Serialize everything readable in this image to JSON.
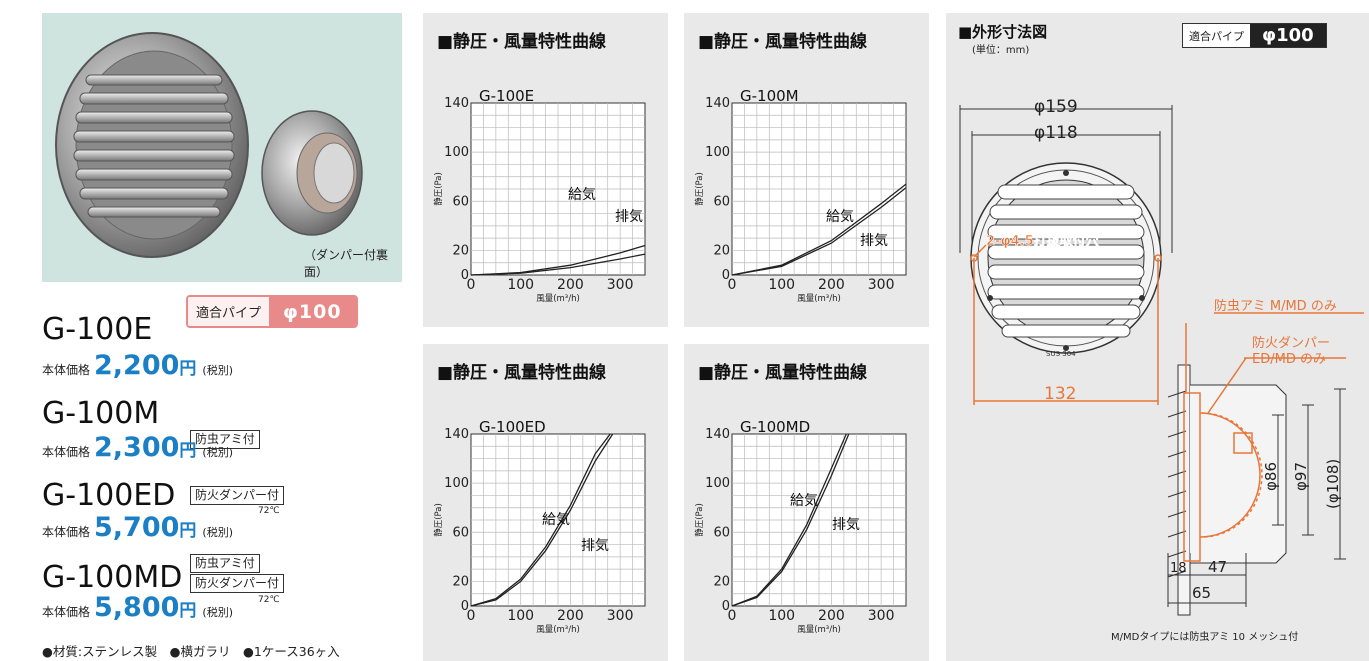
{
  "photo": {
    "caption": "（ダンパー付裏面）"
  },
  "pipe_badge": {
    "label": "適合パイプ",
    "value": "φ100"
  },
  "models": [
    {
      "name": "G-100E",
      "price_label": "本体価格",
      "price": "2,200",
      "unit": "円",
      "tax": "(税別)",
      "tags": [],
      "temp": ""
    },
    {
      "name": "G-100M",
      "price_label": "本体価格",
      "price": "2,300",
      "unit": "円",
      "tax": "(税別)",
      "tags": [
        "防虫アミ付"
      ],
      "temp": ""
    },
    {
      "name": "G-100ED",
      "price_label": "本体価格",
      "price": "5,700",
      "unit": "円",
      "tax": "(税別)",
      "tags": [
        "防火ダンパー付"
      ],
      "temp": "72℃"
    },
    {
      "name": "G-100MD",
      "price_label": "本体価格",
      "price": "5,800",
      "unit": "円",
      "tax": "(税別)",
      "tags": [
        "防虫アミ付",
        "防火ダンパー付"
      ],
      "temp": "72℃"
    }
  ],
  "footnote": "●材質:ステンレス製　●横ガラリ　●1ケース36ヶ入",
  "chart_data": [
    {
      "type": "line",
      "title": "■静圧・風量特性曲線",
      "subtitle": "G-100E",
      "xlabel": "風量(m³/h)",
      "ylabel": "静圧(Pa)",
      "xlim": [
        0,
        350
      ],
      "ylim": [
        0,
        140
      ],
      "xticks": [
        "0",
        "100",
        "200",
        "300"
      ],
      "yticks": [
        "0",
        "20",
        "60",
        "100",
        "140"
      ],
      "series": [
        {
          "name": "給気",
          "x": [
            0,
            100,
            200,
            300,
            350
          ],
          "y": [
            0,
            2,
            8,
            18,
            24
          ]
        },
        {
          "name": "排気",
          "x": [
            0,
            100,
            200,
            300,
            350
          ],
          "y": [
            0,
            1.5,
            6,
            13,
            17
          ]
        }
      ]
    },
    {
      "type": "line",
      "title": "■静圧・風量特性曲線",
      "subtitle": "G-100M",
      "xlabel": "風量(m³/h)",
      "ylabel": "静圧(Pa)",
      "xlim": [
        0,
        350
      ],
      "ylim": [
        0,
        140
      ],
      "xticks": [
        "0",
        "100",
        "200",
        "300"
      ],
      "yticks": [
        "0",
        "20",
        "60",
        "100",
        "140"
      ],
      "series": [
        {
          "name": "給気",
          "x": [
            0,
            100,
            200,
            300,
            350
          ],
          "y": [
            0,
            8,
            28,
            58,
            74
          ]
        },
        {
          "name": "排気",
          "x": [
            0,
            100,
            200,
            300,
            350
          ],
          "y": [
            0,
            7,
            26,
            55,
            71
          ]
        }
      ]
    },
    {
      "type": "line",
      "title": "■静圧・風量特性曲線",
      "subtitle": "G-100ED",
      "xlabel": "風量(m³/h)",
      "ylabel": "静圧(Pa)",
      "xlim": [
        0,
        350
      ],
      "ylim": [
        0,
        140
      ],
      "xticks": [
        "0",
        "100",
        "200",
        "300"
      ],
      "yticks": [
        "0",
        "20",
        "60",
        "100",
        "140"
      ],
      "series": [
        {
          "name": "給気",
          "x": [
            0,
            50,
            100,
            150,
            200,
            250,
            280
          ],
          "y": [
            0,
            6,
            22,
            48,
            82,
            124,
            140
          ]
        },
        {
          "name": "排気",
          "x": [
            0,
            50,
            100,
            150,
            200,
            250,
            285
          ],
          "y": [
            0,
            5,
            20,
            45,
            78,
            118,
            140
          ]
        }
      ]
    },
    {
      "type": "line",
      "title": "■静圧・風量特性曲線",
      "subtitle": "G-100MD",
      "xlabel": "風量(m³/h)",
      "ylabel": "静圧(Pa)",
      "xlim": [
        0,
        350
      ],
      "ylim": [
        0,
        140
      ],
      "xticks": [
        "0",
        "100",
        "200",
        "300"
      ],
      "yticks": [
        "0",
        "20",
        "60",
        "100",
        "140"
      ],
      "series": [
        {
          "name": "給気",
          "x": [
            0,
            50,
            100,
            150,
            200,
            230
          ],
          "y": [
            0,
            8,
            30,
            66,
            112,
            140
          ]
        },
        {
          "name": "排気",
          "x": [
            0,
            50,
            100,
            150,
            200,
            235
          ],
          "y": [
            0,
            7,
            28,
            62,
            106,
            140
          ]
        }
      ]
    }
  ],
  "dimensions": {
    "title": "■外形寸法図",
    "unit": "(単位：mm)",
    "badge_label": "適合パイプ",
    "badge_value": "φ100",
    "d_outer": "φ159",
    "d_inner": "φ118",
    "hole_label": "2-φ4.5打抜取付穴",
    "pitch": "132",
    "material_mark": "SUS 304",
    "net_label": "防虫アミ M/MD のみ",
    "damper_label_1": "防火ダンパー",
    "damper_label_2": "ED/MD のみ",
    "d86": "φ86",
    "d97": "φ97",
    "d108": "(φ108)",
    "depth_18": "18",
    "depth_47": "47",
    "depth_65": "65",
    "note": "M/MDタイプには防虫アミ 10 メッシュ付"
  },
  "colors": {
    "accent_blue": "#1a7fc4",
    "badge_pink": "#e98a8a",
    "annotation_orange": "#e8763a",
    "panel_gray": "#e9e9e9",
    "photo_bg": "#cfe3df"
  }
}
